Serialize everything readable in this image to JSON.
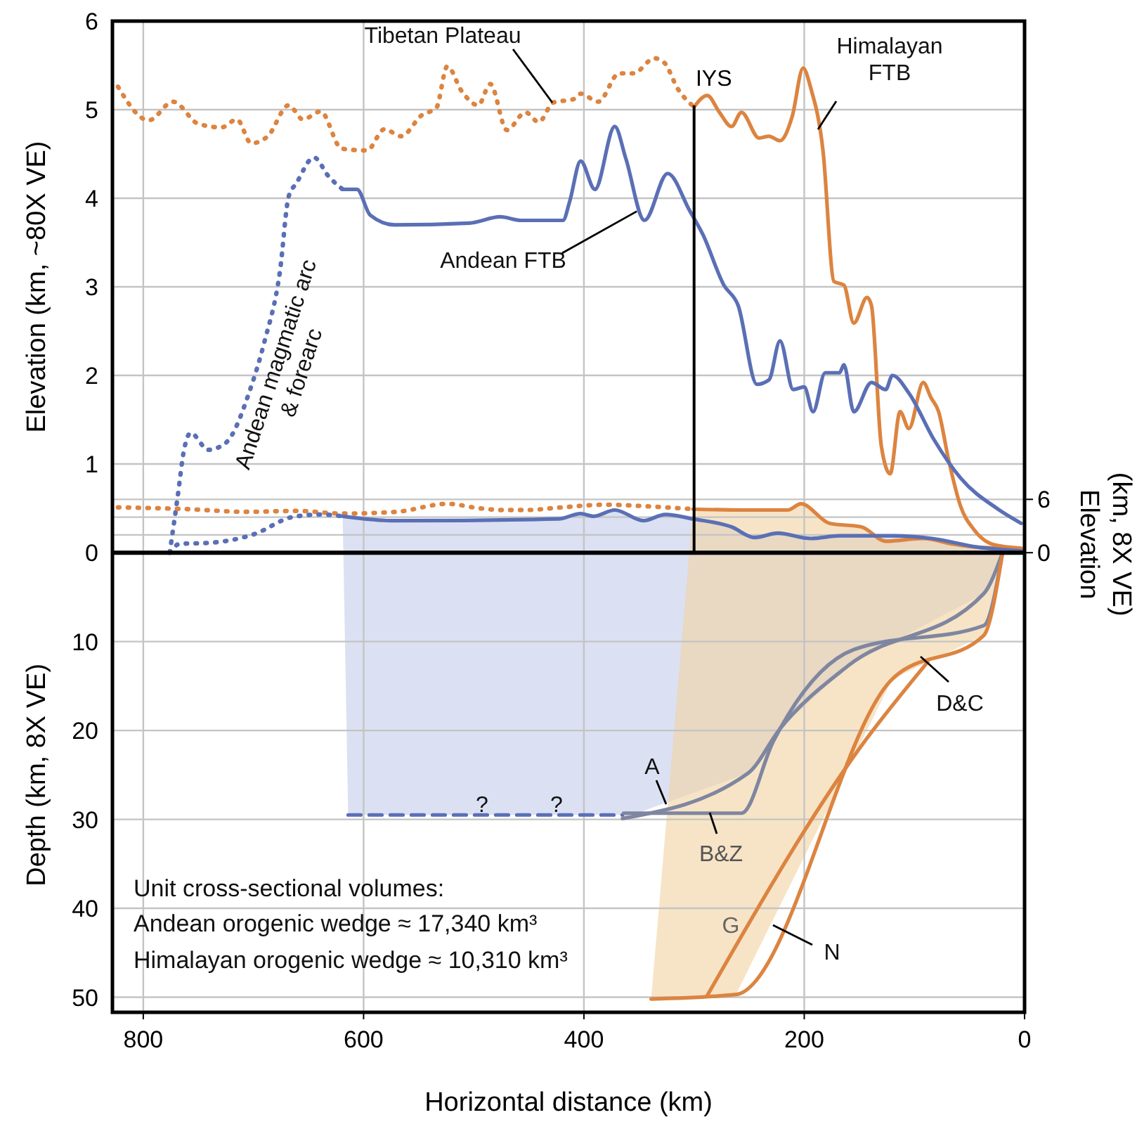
{
  "chart_data": {
    "type": "line",
    "xlabel": "Horizontal distance (km)",
    "ylabel": "Depth (km, 8X VE)",
    "y2label": "Elevation\n(km, 8X VE)",
    "y3label": "Elevation (km, ~80X VE)",
    "xlim": [
      828,
      0
    ],
    "xticks": [
      800,
      600,
      400,
      200,
      0
    ],
    "ylim": [
      -51.7,
      59.8
    ],
    "yticks": [
      {
        "value": -10,
        "label": "10"
      },
      {
        "value": -20,
        "label": "20"
      },
      {
        "value": -30,
        "label": "30"
      },
      {
        "value": -40,
        "label": "40"
      },
      {
        "value": -50,
        "label": "50"
      }
    ],
    "y2lim": [
      -51.7,
      59.8
    ],
    "y2ticks": [
      0,
      {
        "value": 2,
        "label": null
      },
      {
        "value": 4,
        "label": null
      },
      6
    ],
    "y3lim": [
      -5.19,
      6
    ],
    "y3ticks": [
      0,
      1,
      2,
      3,
      4,
      5,
      6
    ],
    "grid": true,
    "series": [
      {
        "axis": "y3",
        "color": "#dc8440",
        "line_style": "dotted",
        "x": [
          823,
          795,
          773,
          750,
          729,
          715,
          702,
          687,
          668,
          655,
          639,
          620,
          597,
          581,
          566,
          547,
          534,
          524,
          511,
          496,
          485,
          470,
          453,
          441,
          428,
          409,
          403,
          387,
          368,
          355,
          336,
          327,
          315,
          300
        ],
        "values": [
          5.26,
          4.88,
          5.09,
          4.84,
          4.8,
          4.89,
          4.62,
          4.7,
          5.05,
          4.89,
          4.98,
          4.56,
          4.54,
          4.78,
          4.7,
          4.94,
          5.02,
          5.49,
          5.21,
          5.05,
          5.29,
          4.77,
          4.97,
          4.86,
          5.08,
          5.12,
          5.18,
          5.09,
          5.41,
          5.41,
          5.58,
          5.53,
          5.24,
          5.03
        ]
      },
      {
        "axis": "y3",
        "color": "#dc8440",
        "line_style": "solid",
        "x": [
          300,
          288,
          277,
          266,
          257,
          241,
          232,
          222,
          211,
          201,
          194,
          183,
          173,
          164,
          155,
          143,
          139,
          130,
          122,
          113,
          105,
          92,
          85,
          78,
          69,
          58,
          46,
          28,
          3
        ],
        "values": [
          5.03,
          5.16,
          4.97,
          4.81,
          4.97,
          4.68,
          4.7,
          4.65,
          4.92,
          5.47,
          5.24,
          4.54,
          3.06,
          3.02,
          2.59,
          2.88,
          2.79,
          1.2,
          0.89,
          1.59,
          1.4,
          1.92,
          1.75,
          1.59,
          1.05,
          0.52,
          0.26,
          0.09,
          0.05
        ]
      },
      {
        "axis": "y3",
        "color": "#5a6fb5",
        "line_style": "solid",
        "x": [
          619,
          606,
          594,
          572,
          504,
          476,
          457,
          419,
          413,
          403,
          390,
          372,
          362,
          345,
          324,
          304,
          292,
          273,
          260,
          243,
          232,
          222,
          210,
          200,
          192,
          181,
          168,
          164,
          155,
          139,
          126,
          120,
          105,
          82,
          58,
          24,
          3
        ],
        "values": [
          4.1,
          4.1,
          3.81,
          3.7,
          3.72,
          3.79,
          3.75,
          3.75,
          3.96,
          4.42,
          4.1,
          4.81,
          4.45,
          3.75,
          4.28,
          3.86,
          3.59,
          3.02,
          2.79,
          1.9,
          1.95,
          2.39,
          1.84,
          1.87,
          1.59,
          2.03,
          2.03,
          2.12,
          1.59,
          1.92,
          1.84,
          2.0,
          1.8,
          1.27,
          0.84,
          0.49,
          0.33
        ]
      },
      {
        "axis": "y3",
        "color": "#5a6fb5",
        "line_style": "dotted",
        "x": [
          776,
          769,
          763,
          757,
          741,
          725,
          703,
          690,
          676,
          668,
          661,
          645,
          632,
          619
        ],
        "values": [
          0,
          0.61,
          1.16,
          1.35,
          1.16,
          1.24,
          1.84,
          2.38,
          3.17,
          4.02,
          4.17,
          4.46,
          4.25,
          4.1
        ]
      },
      {
        "color": "#dc8440",
        "line_style": "dotted",
        "x": [
          823,
          760,
          708,
          660,
          619,
          570,
          524,
          495,
          474,
          453,
          420,
          381,
          340,
          301
        ],
        "values": [
          5.1,
          4.9,
          4.6,
          4.7,
          4.4,
          4.6,
          5.5,
          5.0,
          4.8,
          4.8,
          5.1,
          5.4,
          5.2,
          4.9
        ]
      },
      {
        "color": "#dc8440",
        "line_style": "solid",
        "x": [
          301,
          254,
          215,
          203,
          177,
          148,
          126,
          92,
          66,
          41,
          15,
          3
        ],
        "values": [
          4.9,
          4.8,
          4.8,
          5.5,
          3.3,
          2.9,
          1.3,
          1.6,
          1.0,
          0.6,
          0.5,
          0.3
        ]
      },
      {
        "color": "#5a6fb5",
        "line_style": "solid",
        "x": [
          619,
          572,
          423,
          403,
          391,
          372,
          346,
          326,
          301,
          266,
          245,
          224,
          194,
          168,
          122,
          84,
          41,
          3
        ],
        "values": [
          4.1,
          3.6,
          3.8,
          4.4,
          4.1,
          4.8,
          3.6,
          4.3,
          3.8,
          2.9,
          1.7,
          2.2,
          1.6,
          1.9,
          1.9,
          1.6,
          0.6,
          0.2
        ]
      },
      {
        "color": "#5a6fb5",
        "line_style": "dotted",
        "x": [
          776,
          767,
          741,
          699,
          665,
          639,
          619
        ],
        "values": [
          0,
          1.0,
          1.1,
          2.1,
          4.0,
          4.3,
          4.1
        ]
      },
      {
        "color": "#5a6fb5",
        "line_style": "dashed",
        "x": [
          614,
          365
        ],
        "values": [
          -29.5,
          -29.5
        ]
      },
      {
        "color": "#7f86a0",
        "line_style": "solid",
        "x": [
          365,
          251,
          222,
          160,
          37,
          20
        ],
        "values": [
          -29.9,
          -24.8,
          -19.8,
          -12.7,
          -4.6,
          0
        ]
      },
      {
        "color": "#7f86a0",
        "line_style": "solid",
        "x": [
          364,
          257,
          228,
          155,
          37,
          20
        ],
        "values": [
          -29.3,
          -29.3,
          -21.2,
          -10.9,
          -8.2,
          0
        ]
      },
      {
        "color": "#dc8440",
        "line_style": "solid",
        "x": [
          288,
          148,
          88
        ],
        "values": [
          -49.8,
          -21.7,
          -12.3
        ]
      },
      {
        "color": "#dc8440",
        "line_style": "solid",
        "x": [
          339,
          262,
          120,
          37,
          20
        ],
        "values": [
          -50.2,
          -49.7,
          -14.2,
          -9.3,
          0
        ]
      }
    ],
    "ref_lines": [
      {
        "axis": "y",
        "value": 0,
        "color": "#000000"
      },
      {
        "axis": "x",
        "value": 300,
        "label": "IYS",
        "color": "#000000"
      }
    ],
    "annotations": [
      "Tibetan Plateau",
      "Himalayan\nFTB",
      {
        "text": "Andean FTB",
        "x": 352,
        "y": 38.4
      },
      "Andean magmatic arc\n& forearc",
      "?",
      "?",
      "A",
      "B&Z",
      "D&C",
      "G",
      "N",
      "Unit cross-sectional volumes:",
      "Andean orogenic wedge ≈ 17,340 km³",
      "Himalayan orogenic wedge ≈ 10,310 km³"
    ]
  }
}
